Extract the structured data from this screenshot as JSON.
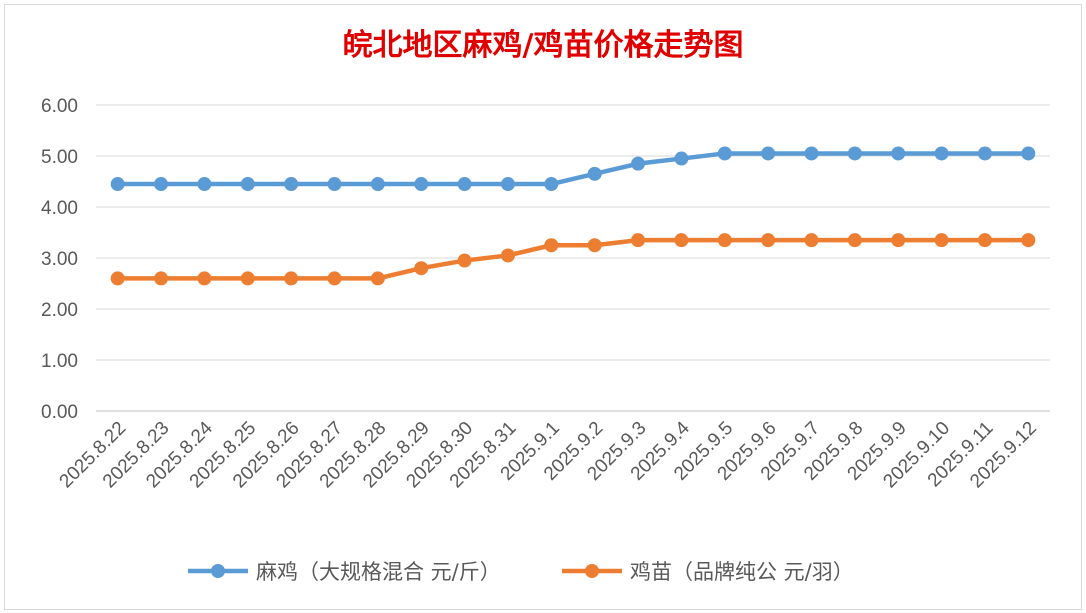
{
  "chart_data": {
    "type": "line",
    "title": "皖北地区麻鸡/鸡苗价格走势图",
    "title_color": "#E00000",
    "categories": [
      "2025.8.22",
      "2025.8.23",
      "2025.8.24",
      "2025.8.25",
      "2025.8.26",
      "2025.8.27",
      "2025.8.28",
      "2025.8.29",
      "2025.8.30",
      "2025.8.31",
      "2025.9.1",
      "2025.9.2",
      "2025.9.3",
      "2025.9.4",
      "2025.9.5",
      "2025.9.6",
      "2025.9.7",
      "2025.9.8",
      "2025.9.9",
      "2025.9.10",
      "2025.9.11",
      "2025.9.12"
    ],
    "series": [
      {
        "name": "麻鸡（大规格混合 元/斤）",
        "color": "#5B9BD5",
        "values": [
          4.45,
          4.45,
          4.45,
          4.45,
          4.45,
          4.45,
          4.45,
          4.45,
          4.45,
          4.45,
          4.45,
          4.65,
          4.85,
          4.95,
          5.05,
          5.05,
          5.05,
          5.05,
          5.05,
          5.05,
          5.05,
          5.05
        ]
      },
      {
        "name": "鸡苗（品牌纯公 元/羽）",
        "color": "#ED7D31",
        "values": [
          2.6,
          2.6,
          2.6,
          2.6,
          2.6,
          2.6,
          2.6,
          2.8,
          2.95,
          3.05,
          3.25,
          3.25,
          3.35,
          3.35,
          3.35,
          3.35,
          3.35,
          3.35,
          3.35,
          3.35,
          3.35,
          3.35
        ]
      }
    ],
    "y_ticks": [
      "0.00",
      "1.00",
      "2.00",
      "3.00",
      "4.00",
      "5.00",
      "6.00"
    ],
    "ylim": [
      0,
      6
    ],
    "grid": true,
    "legend_position": "bottom",
    "xlabel": "",
    "ylabel": ""
  }
}
